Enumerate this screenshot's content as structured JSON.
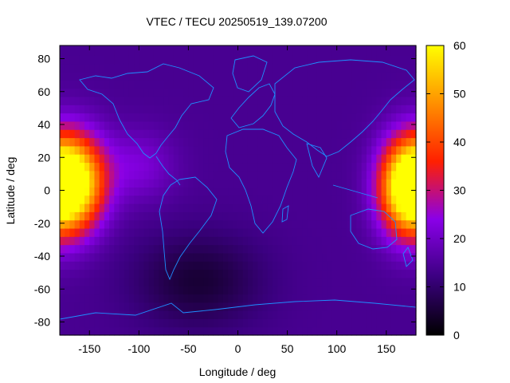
{
  "chart_data": {
    "type": "heatmap",
    "title": "VTEC / TECU 20250519_139.07200",
    "xlabel": "Longitude / deg",
    "ylabel": "Latitude / deg",
    "xlim": [
      -180,
      180
    ],
    "ylim": [
      -88,
      88
    ],
    "x_ticks": [
      -150,
      -100,
      -50,
      0,
      50,
      100,
      150
    ],
    "y_ticks": [
      -80,
      -60,
      -40,
      -20,
      0,
      20,
      40,
      60,
      80
    ],
    "colorbar": {
      "range": [
        0,
        60
      ],
      "ticks": [
        0,
        10,
        20,
        30,
        40,
        50,
        60
      ],
      "palette": [
        "#000000",
        "#3b0080",
        "#8a00e8",
        "#ff2000",
        "#ff9000",
        "#ffff00"
      ]
    },
    "features": [
      {
        "center_lon": -165,
        "center_lat": 5,
        "peak_vtec": 60
      },
      {
        "center_lon": 170,
        "center_lat": 2,
        "peak_vtec": 58
      },
      {
        "min_lon": -40,
        "min_lat": -55,
        "min_vtec": 5
      }
    ],
    "background_vtec": 14,
    "coastlines": "world outline",
    "grid": false,
    "legend": "colorbar-right"
  }
}
